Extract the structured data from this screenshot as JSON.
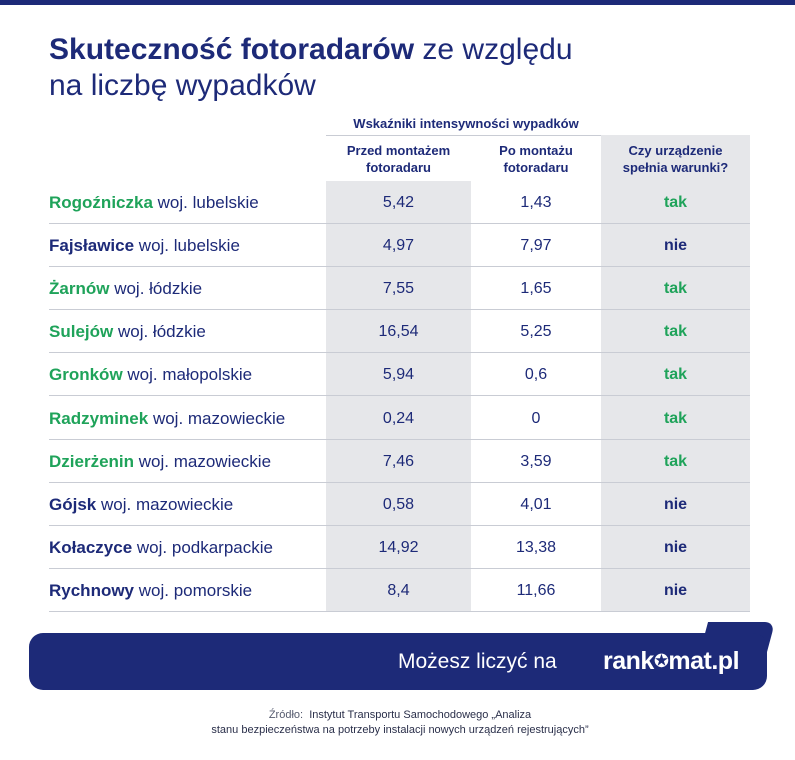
{
  "title": {
    "bold": "Skuteczność fotoradarów",
    "line1_rest": " ze względu",
    "line2": "na liczbę wypadków"
  },
  "chart_data": {
    "type": "table",
    "group_header": "Wskaźniki intensywności wypadków",
    "columns": [
      "Przed montażem fotoradaru",
      "Po montażu fotoradaru",
      "Czy urządzenie spełnia warunki?"
    ],
    "column_lines": [
      [
        "Przed montażem",
        "fotoradaru"
      ],
      [
        "Po montażu",
        "fotoradaru"
      ],
      [
        "Czy urządzenie",
        "spełnia warunki?"
      ]
    ],
    "colors": {
      "positive": "#1fa35a",
      "negative": "#1d2a78",
      "shade": "#e6e7ea"
    },
    "rows": [
      {
        "town": "Rogoźniczka",
        "region": "woj. lubelskie",
        "before": "5,42",
        "after": "1,43",
        "meets": "tak"
      },
      {
        "town": "Fajsławice",
        "region": "woj. lubelskie",
        "before": "4,97",
        "after": "7,97",
        "meets": "nie"
      },
      {
        "town": "Żarnów",
        "region": "woj. łódzkie",
        "before": "7,55",
        "after": "1,65",
        "meets": "tak"
      },
      {
        "town": "Sulejów",
        "region": "woj. łódzkie",
        "before": "16,54",
        "after": "5,25",
        "meets": "tak"
      },
      {
        "town": "Gronków",
        "region": "woj. małopolskie",
        "before": "5,94",
        "after": "0,6",
        "meets": "tak"
      },
      {
        "town": "Radzyminek",
        "region": "woj. mazowieckie",
        "before": "0,24",
        "after": "0",
        "meets": "tak"
      },
      {
        "town": "Dzierżenin",
        "region": "woj. mazowieckie",
        "before": "7,46",
        "after": "3,59",
        "meets": "tak"
      },
      {
        "town": "Gójsk",
        "region": "woj. mazowieckie",
        "before": "0,58",
        "after": "4,01",
        "meets": "nie"
      },
      {
        "town": "Kołaczyce",
        "region": "woj. podkarpackie",
        "before": "14,92",
        "after": "13,38",
        "meets": "nie"
      },
      {
        "town": "Rychnowy",
        "region": "woj. pomorskie",
        "before": "8,4",
        "after": "11,66",
        "meets": "nie"
      }
    ]
  },
  "banner": {
    "text": "Możesz liczyć na",
    "logo_a": "rank",
    "logo_star": "✪",
    "logo_b": "mat.pl"
  },
  "source": {
    "label": "Źródło:",
    "line1": "Instytut Transportu Samochodowego „Analiza",
    "line2": "stanu bezpieczeństwa na potrzeby instalacji nowych urządzeń rejestrujących”"
  }
}
